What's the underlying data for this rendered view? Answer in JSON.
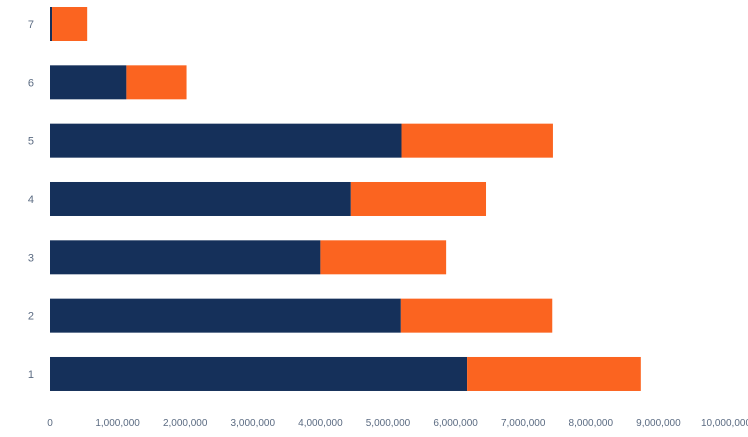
{
  "chart_data": {
    "type": "bar",
    "orientation": "horizontal",
    "stacked": true,
    "categories": [
      "1",
      "2",
      "3",
      "4",
      "5",
      "6",
      "7"
    ],
    "series": [
      {
        "values": [
          6170000,
          5190000,
          4000000,
          4450000,
          5200000,
          1130000,
          30000
        ],
        "color": "#15305a"
      },
      {
        "values": [
          2570000,
          2240000,
          1860000,
          2000000,
          2240000,
          890000,
          520000
        ],
        "color": "#fb6420"
      }
    ],
    "x_ticks": [
      "0",
      "1,000,000",
      "2,000,000",
      "3,000,000",
      "4,000,000",
      "5,000,000",
      "6,000,000",
      "7,000,000",
      "8,000,000",
      "9,000,000",
      "10,000,000"
    ],
    "xlim": [
      0,
      10000000
    ],
    "grid": false,
    "legend": "none",
    "title": "",
    "xlabel": "",
    "ylabel": ""
  },
  "colors": {
    "tick_text": "#5b6b82",
    "background": "#ffffff"
  }
}
